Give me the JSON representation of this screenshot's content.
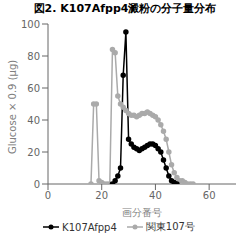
{
  "chart_data": {
    "type": "line",
    "title": "図2. K107Afpp4澱粉の分子量分布",
    "xlabel": "画分番号",
    "ylabel": "Glucose × 0.9 (µg)",
    "xlim": [
      0,
      70
    ],
    "ylim": [
      0,
      100
    ],
    "xticks": [
      0,
      20,
      40,
      60
    ],
    "yticks": [
      0,
      20,
      40,
      60,
      80,
      100
    ],
    "grid": false,
    "legend": "bottom",
    "series": [
      {
        "name": "K107Afpp4",
        "color": "#000000",
        "marker": "circle",
        "x": [
          24,
          25,
          26,
          27,
          28,
          29,
          30,
          31,
          32,
          33,
          34,
          35,
          36,
          37,
          38,
          39,
          40,
          41,
          42,
          43,
          44,
          45,
          46,
          47,
          48
        ],
        "values": [
          0,
          2,
          5,
          10,
          68,
          95,
          28,
          25,
          23,
          22,
          21,
          22,
          23,
          24,
          25,
          25,
          24,
          22,
          20,
          15,
          10,
          5,
          2,
          1,
          0
        ]
      },
      {
        "name": "関東107号",
        "color": "#aaaaaa",
        "marker": "circle",
        "x": [
          16,
          17,
          18,
          19,
          20,
          21,
          22,
          23,
          24,
          25,
          26,
          27,
          28,
          29,
          30,
          31,
          32,
          33,
          34,
          35,
          36,
          37,
          38,
          39,
          40,
          41,
          42,
          43,
          44,
          45,
          46,
          47,
          48,
          49,
          50,
          51,
          52,
          53,
          54
        ],
        "values": [
          0,
          50,
          50,
          2,
          1,
          0,
          0,
          0,
          84,
          82,
          55,
          50,
          48,
          46,
          44,
          43,
          43,
          42,
          43,
          44,
          44,
          45,
          44,
          43,
          42,
          40,
          37,
          33,
          28,
          20,
          12,
          7,
          4,
          2,
          2,
          1,
          0,
          0,
          0
        ]
      }
    ]
  }
}
